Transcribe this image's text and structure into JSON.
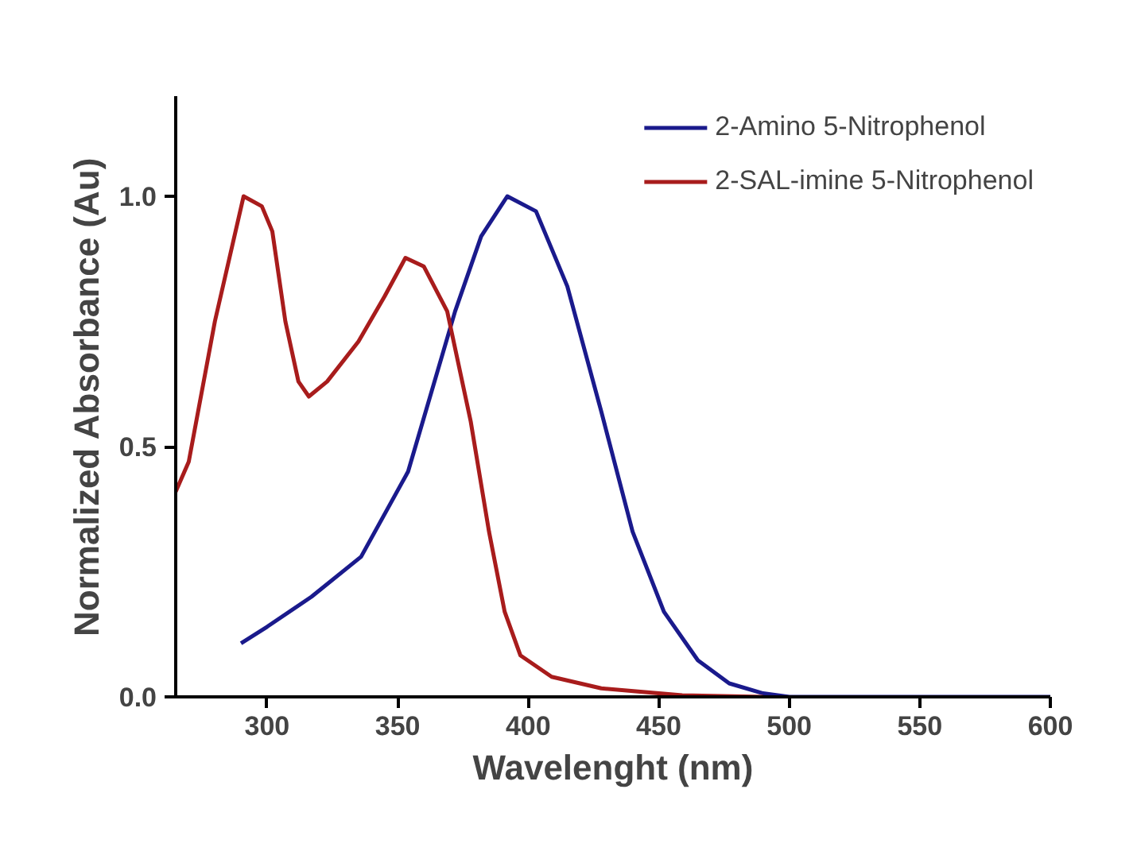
{
  "chart_data": {
    "type": "line",
    "xlabel": "Wavelenght (nm)",
    "ylabel": "Normalized Absorbance (Au)",
    "xlim": [
      265,
      600
    ],
    "ylim": [
      0,
      1.2
    ],
    "xticks": [
      300,
      350,
      400,
      450,
      500,
      550,
      600
    ],
    "yticks": [
      {
        "value": 0,
        "label": "0.0"
      },
      {
        "value": 0.5,
        "label": "0.5"
      },
      {
        "value": 1,
        "label": "1.0"
      }
    ],
    "grid": false,
    "legend": "top right",
    "marker": "none",
    "line_style": "solid",
    "series": [
      {
        "name": "2-Amino 5-Nitrophenol",
        "color": "#1a1a8c",
        "x": [
          290,
          300,
          317,
          336,
          354,
          372,
          382,
          392,
          403,
          415,
          428,
          440,
          452,
          465,
          477,
          490,
          500,
          550,
          600
        ],
        "values": [
          0.107,
          0.14,
          0.2,
          0.28,
          0.45,
          0.77,
          0.92,
          1.0,
          0.97,
          0.82,
          0.57,
          0.33,
          0.17,
          0.073,
          0.027,
          0.007,
          0,
          0,
          0
        ]
      },
      {
        "name": "2-SAL-imine 5-Nitrophenol",
        "color": "#a81c1c",
        "x": [
          265,
          270,
          280,
          291,
          298,
          302,
          307,
          312,
          316,
          323,
          335,
          345,
          353,
          360,
          369,
          378,
          385,
          391,
          397,
          409,
          428,
          459,
          490
        ],
        "values": [
          0.41,
          0.47,
          0.75,
          1.0,
          0.98,
          0.93,
          0.75,
          0.63,
          0.6,
          0.63,
          0.71,
          0.8,
          0.877,
          0.86,
          0.77,
          0.55,
          0.33,
          0.17,
          0.083,
          0.04,
          0.017,
          0.003,
          0
        ]
      }
    ]
  }
}
